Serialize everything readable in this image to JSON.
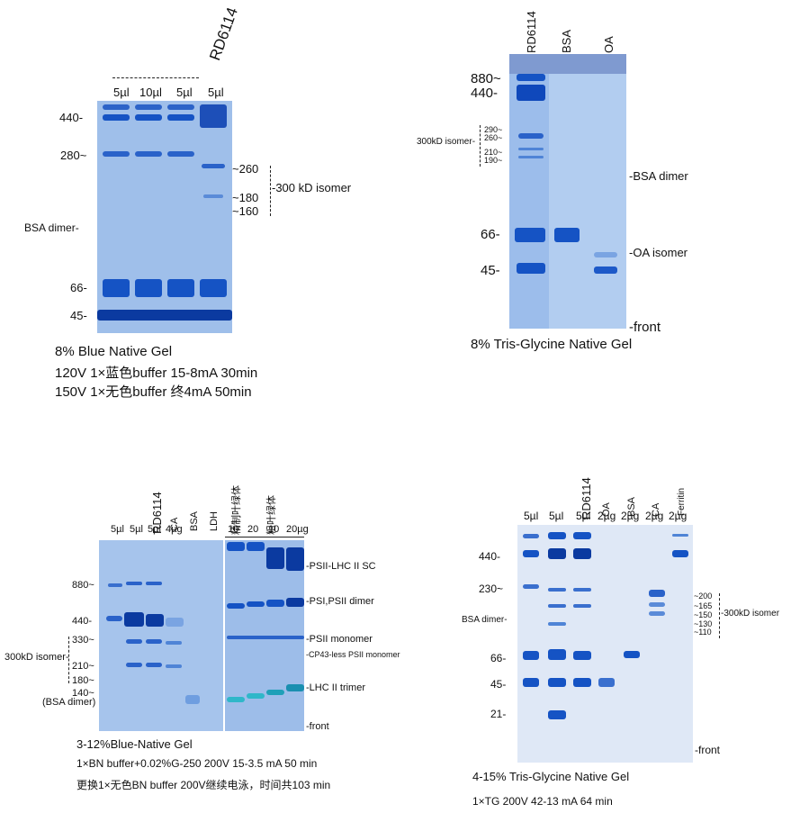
{
  "panel1": {
    "gel_name": "RD6114",
    "lanes": [
      "5µl",
      "10µl",
      "5µl",
      "5µl"
    ],
    "markers": [
      "440-",
      "280~",
      "BSA dimer-",
      "66-",
      "45-"
    ],
    "right_labels": [
      "~260",
      "~180",
      "~160"
    ],
    "isomer_label": "-300 kD isomer",
    "caption1": "8% Blue Native Gel",
    "caption2": "120V 1×蓝色buffer 15-8mA  30min",
    "caption3": "150V 1×无色buffer 终4mA  50min"
  },
  "panel2": {
    "lanes": [
      "RD6114",
      "BSA",
      "OA"
    ],
    "markers": [
      "880~",
      "440-",
      "66-",
      "45-"
    ],
    "small_marks": [
      "290~",
      "260~",
      "210~",
      "190~"
    ],
    "isomer_label": "300kD isomer-",
    "right_labels": [
      "-BSA dimer",
      "-OA isomer",
      "-front"
    ],
    "caption": "8% Tris-Glycine Native Gel"
  },
  "panel3": {
    "lanes_top": [
      "RD6114",
      "CA",
      "BSA",
      "LDH",
      "精制叶绿体",
      "粗叶绿体"
    ],
    "amounts": [
      "5µl",
      "5µl",
      "5µl",
      "4µg",
      "10",
      "20",
      "10",
      "20µg"
    ],
    "markers": [
      "880~",
      "440-",
      "330~",
      "210~",
      "180~",
      "140~",
      "(BSA dimer)"
    ],
    "isomer_label": "300kD isomer-",
    "right_labels": [
      "-PSII-LHC II SC",
      "-PSI,PSII dimer",
      "-PSII monomer",
      "-CP43-less PSII monomer",
      "-LHC II trimer",
      "-front"
    ],
    "caption1": "3-12%Blue-Native Gel",
    "caption2": "1×BN buffer+0.02%G-250 200V 15-3.5 mA 50 min",
    "caption3": "更换1×无色BN buffer 200V继续电泳，时间共103 min"
  },
  "panel4": {
    "lanes_top": [
      "RD6114",
      "OA",
      "BSA",
      "CA",
      "Ferritin"
    ],
    "amounts": [
      "5µl",
      "5µl",
      "5µl",
      "2µg",
      "2µg",
      "2µg",
      "2µg"
    ],
    "markers": [
      "440-",
      "230~",
      "BSA dimer-",
      "66-",
      "45-",
      "21-"
    ],
    "right_marks": [
      "~200",
      "~165",
      "~150",
      "~130",
      "~110"
    ],
    "isomer_label": "-300kD isomer",
    "front_label": "-front",
    "caption1": "4-15% Tris-Glycine Native Gel",
    "caption2": "1×TG 200V 42-13 mA 64 min"
  },
  "colors": {
    "gel_light": "#a9c6ec",
    "gel_mid": "#6f9ee0",
    "band": "#1553c4",
    "band_dark": "#0b3aa0"
  }
}
